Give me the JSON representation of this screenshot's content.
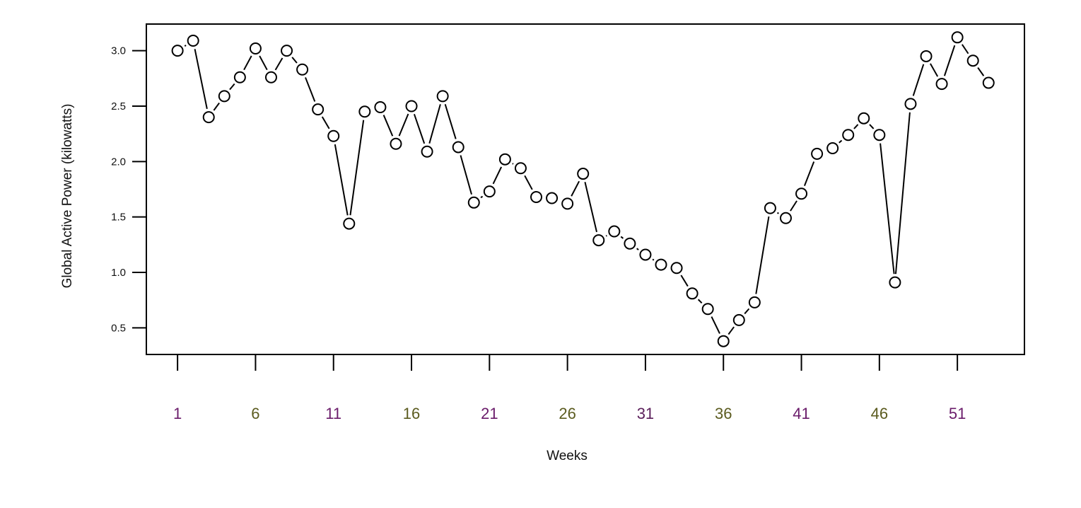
{
  "chart_data": {
    "type": "line",
    "marker": "open-circle",
    "xlabel": "Weeks",
    "ylabel": "Global Active Power (kilowatts)",
    "x_ticks": [
      1,
      6,
      11,
      16,
      21,
      26,
      31,
      36,
      41,
      46,
      51
    ],
    "x_tick_colors": [
      "#6a1b6a",
      "#5b5b1f",
      "#6a1b6a",
      "#5b5b1f",
      "#6a1b6a",
      "#5b5b1f",
      "#5b1f5b",
      "#5b5b1f",
      "#6a1b6a",
      "#5b5b1f",
      "#6a1b6a"
    ],
    "y_ticks": [
      "0.5",
      "1.0",
      "1.5",
      "2.0",
      "2.5",
      "3.0"
    ],
    "xlim": [
      -1,
      55.3
    ],
    "ylim": [
      0.26,
      3.24
    ],
    "grid": false,
    "line_color": "#000000",
    "x": [
      1,
      2,
      3,
      4,
      5,
      6,
      7,
      8,
      9,
      10,
      11,
      12,
      13,
      14,
      15,
      16,
      17,
      18,
      19,
      20,
      21,
      22,
      23,
      24,
      25,
      26,
      27,
      28,
      29,
      30,
      31,
      32,
      33,
      34,
      35,
      36,
      37,
      38,
      39,
      40,
      41,
      42,
      43,
      44,
      45,
      46,
      47,
      48,
      49,
      50,
      51,
      52,
      53
    ],
    "y": [
      3.0,
      3.09,
      2.4,
      2.59,
      2.76,
      3.02,
      2.76,
      3.0,
      2.83,
      2.47,
      2.23,
      1.44,
      2.45,
      2.49,
      2.16,
      2.5,
      2.09,
      2.59,
      2.13,
      1.63,
      1.73,
      2.02,
      1.94,
      1.68,
      1.67,
      1.62,
      1.89,
      1.29,
      1.37,
      1.26,
      1.16,
      1.07,
      1.04,
      0.81,
      0.67,
      0.38,
      0.57,
      0.73,
      1.58,
      1.49,
      1.71,
      2.07,
      2.12,
      2.24,
      2.39,
      2.24,
      0.91,
      2.52,
      2.95,
      2.7,
      3.12,
      2.91,
      2.71
    ]
  }
}
